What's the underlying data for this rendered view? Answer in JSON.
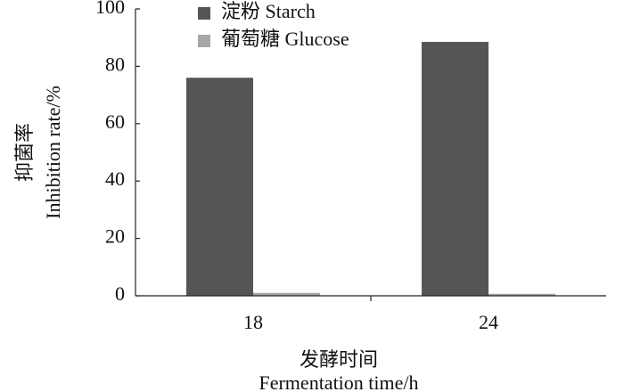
{
  "chart_data": {
    "type": "bar",
    "categories": [
      "18",
      "24"
    ],
    "series": [
      {
        "name": "淀粉 Starch",
        "color": "#555555",
        "values": [
          76,
          88.5
        ]
      },
      {
        "name": "葡萄糖 Glucose",
        "color": "#a6a6a6",
        "values": [
          1,
          0.7
        ]
      }
    ],
    "ylim": [
      0,
      100
    ],
    "yticks": [
      0,
      20,
      40,
      60,
      80,
      100
    ],
    "ylabel": [
      "抑菌率",
      "Inhibition rate/%"
    ],
    "xlabel": [
      "发酵时间",
      "Fermentation time/h"
    ]
  }
}
